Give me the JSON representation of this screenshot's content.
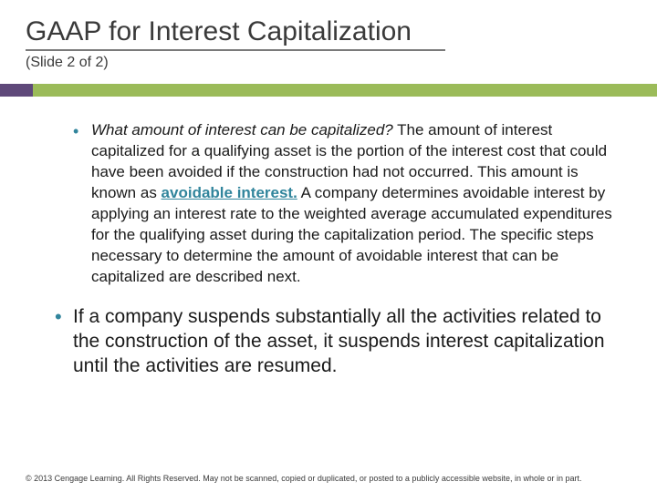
{
  "title": "GAAP for Interest Capitalization",
  "subtitle": "(Slide 2 of 2)",
  "colors": {
    "accent_purple": "#5f497a",
    "accent_green": "#9bbb59",
    "bullet_color": "#31859c",
    "keyword_color": "#31859c",
    "title_underline": "#7a7a7a",
    "text_color": "#1a1a1a",
    "background": "#ffffff"
  },
  "typography": {
    "title_fontsize": 30,
    "subtitle_fontsize": 16,
    "bullet1_fontsize": 17,
    "bullet2_fontsize": 21,
    "footer_fontsize": 9,
    "font_family": "Arial"
  },
  "bullet1": {
    "lead_italic": "What amount of interest can be capitalized?",
    "part_a": " The amount of interest capitalized for a qualifying asset is the portion of the interest cost that could have been avoided if the construction had not occurred. This amount is known as ",
    "keyword": "avoidable interest.",
    "part_b": " A company determines avoidable interest by applying an interest rate to the weighted average accumulated expenditures for the qualifying asset during the capitalization period. The specific steps necessary to determine the amount of avoidable interest that can be capitalized are described next."
  },
  "bullet2": "If a company suspends substantially all the activities related to the construction of the asset, it suspends interest capitalization until the activities are resumed.",
  "footer": "© 2013 Cengage Learning. All Rights Reserved. May not be scanned, copied or duplicated, or posted to a publicly accessible website, in whole or in part."
}
